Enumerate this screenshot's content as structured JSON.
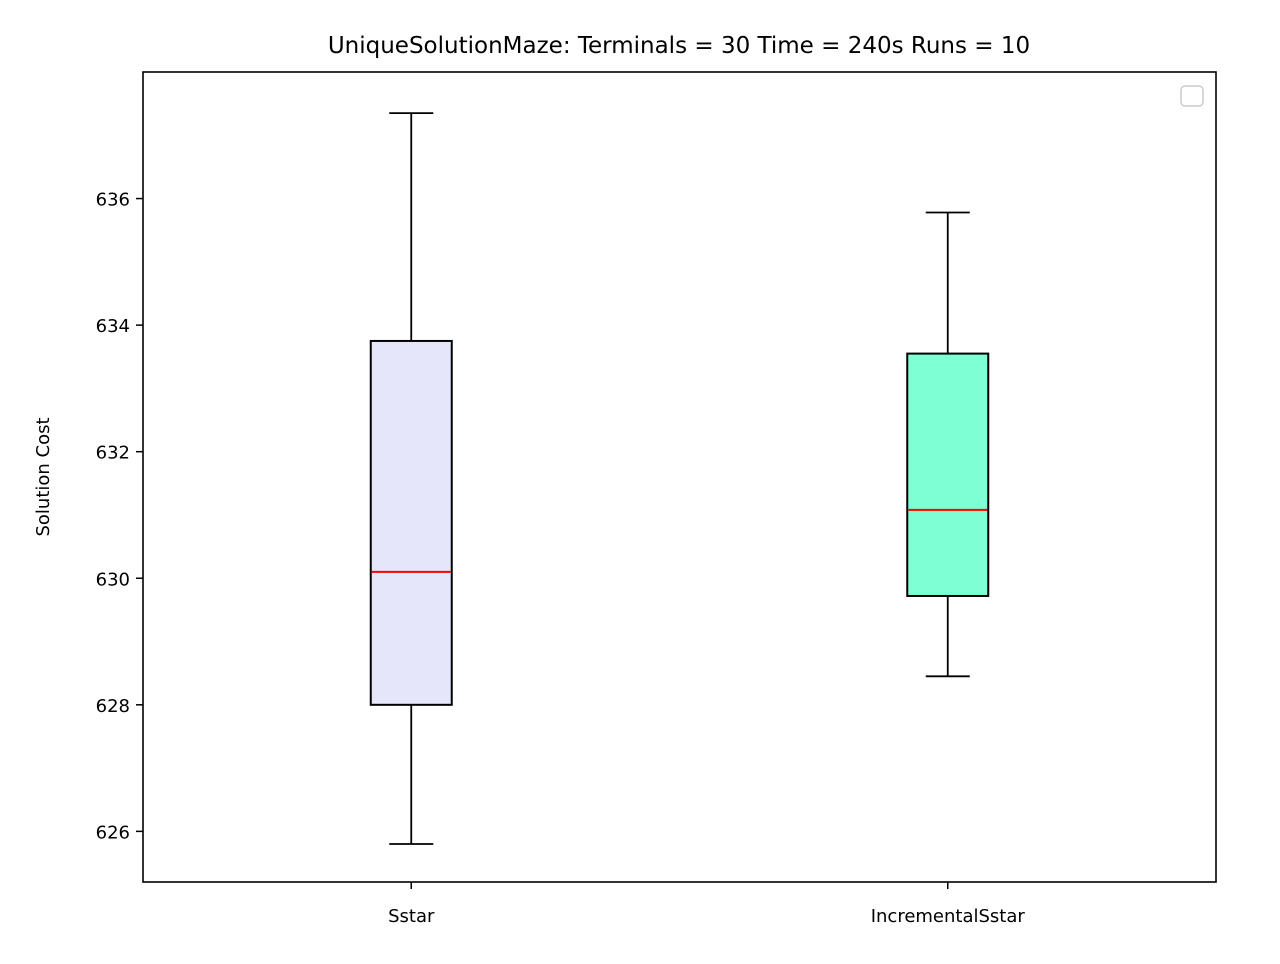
{
  "chart_data": {
    "type": "boxplot",
    "title": "UniqueSolutionMaze:  Terminals = 30  Time = 240s  Runs = 10",
    "xlabel": "",
    "ylabel": "Solution Cost",
    "ylim": [
      625.2,
      638.0
    ],
    "yticks": [
      "626",
      "628",
      "630",
      "632",
      "634",
      "636"
    ],
    "grid": false,
    "legend": {
      "placement": "upper right",
      "entries": []
    },
    "median_color": "#ff0000",
    "series": [
      {
        "category": "Sstar",
        "color": "#e6e6fa",
        "whisker_low": 625.8,
        "q1": 628.0,
        "median": 630.1,
        "q3": 633.75,
        "whisker_high": 637.35
      },
      {
        "category": "IncrementalSstar",
        "color": "#7fffd4",
        "whisker_low": 628.45,
        "q1": 629.72,
        "median": 631.08,
        "q3": 633.55,
        "whisker_high": 635.78
      }
    ]
  }
}
